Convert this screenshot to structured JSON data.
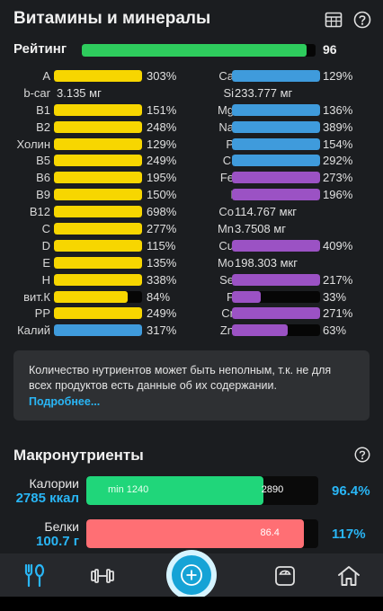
{
  "header": {
    "title": "Витамины и минералы",
    "icons": [
      "table-icon",
      "help-icon"
    ]
  },
  "rating": {
    "label": "Рейтинг",
    "value": "96",
    "fill_fraction": 0.96,
    "color": "#2ecc5d"
  },
  "colors": {
    "yellow": "#f7d600",
    "blue": "#3f9bdc",
    "purple": "#9b52c4",
    "green": "#20d67a",
    "red": "#ff6f74",
    "accent": "#29b6f6"
  },
  "nutrients_left": [
    {
      "name": "A",
      "pct": "303%",
      "fill": 1.0,
      "color": "#f7d600"
    },
    {
      "name": "b-car",
      "amount": "3.135 мг"
    },
    {
      "name": "B1",
      "pct": "151%",
      "fill": 1.0,
      "color": "#f7d600"
    },
    {
      "name": "B2",
      "pct": "248%",
      "fill": 1.0,
      "color": "#f7d600"
    },
    {
      "name": "Холин",
      "pct": "129%",
      "fill": 1.0,
      "color": "#f7d600"
    },
    {
      "name": "B5",
      "pct": "249%",
      "fill": 1.0,
      "color": "#f7d600"
    },
    {
      "name": "B6",
      "pct": "195%",
      "fill": 1.0,
      "color": "#f7d600"
    },
    {
      "name": "B9",
      "pct": "150%",
      "fill": 1.0,
      "color": "#f7d600"
    },
    {
      "name": "B12",
      "pct": "698%",
      "fill": 1.0,
      "color": "#f7d600"
    },
    {
      "name": "C",
      "pct": "277%",
      "fill": 1.0,
      "color": "#f7d600"
    },
    {
      "name": "D",
      "pct": "115%",
      "fill": 1.0,
      "color": "#f7d600"
    },
    {
      "name": "E",
      "pct": "135%",
      "fill": 1.0,
      "color": "#f7d600"
    },
    {
      "name": "H",
      "pct": "338%",
      "fill": 1.0,
      "color": "#f7d600"
    },
    {
      "name": "вит.К",
      "pct": "84%",
      "fill": 0.84,
      "color": "#f7d600"
    },
    {
      "name": "PP",
      "pct": "249%",
      "fill": 1.0,
      "color": "#f7d600"
    },
    {
      "name": "Калий",
      "pct": "317%",
      "fill": 1.0,
      "color": "#3f9bdc"
    }
  ],
  "nutrients_right": [
    {
      "name": "Ca",
      "pct": "129%",
      "fill": 1.0,
      "color": "#3f9bdc"
    },
    {
      "name": "Si",
      "amount": "233.777 мг"
    },
    {
      "name": "Mg",
      "pct": "136%",
      "fill": 1.0,
      "color": "#3f9bdc"
    },
    {
      "name": "Na",
      "pct": "389%",
      "fill": 1.0,
      "color": "#3f9bdc"
    },
    {
      "name": "P",
      "pct": "154%",
      "fill": 1.0,
      "color": "#3f9bdc"
    },
    {
      "name": "Cl",
      "pct": "292%",
      "fill": 1.0,
      "color": "#3f9bdc"
    },
    {
      "name": "Fe",
      "pct": "273%",
      "fill": 1.0,
      "color": "#9b52c4"
    },
    {
      "name": "I",
      "pct": "196%",
      "fill": 1.0,
      "color": "#9b52c4"
    },
    {
      "name": "Co",
      "amount": "114.767 мкг"
    },
    {
      "name": "Mn",
      "amount": "3.7508 мг"
    },
    {
      "name": "Cu",
      "pct": "409%",
      "fill": 1.0,
      "color": "#9b52c4"
    },
    {
      "name": "Mo",
      "amount": "198.303 мкг"
    },
    {
      "name": "Se",
      "pct": "217%",
      "fill": 1.0,
      "color": "#9b52c4"
    },
    {
      "name": "F",
      "pct": "33%",
      "fill": 0.33,
      "color": "#9b52c4"
    },
    {
      "name": "Cr",
      "pct": "271%",
      "fill": 1.0,
      "color": "#9b52c4"
    },
    {
      "name": "Zn",
      "pct": "63%",
      "fill": 0.63,
      "color": "#9b52c4"
    }
  ],
  "info": {
    "text": "Количество нутриентов может быть неполным, т.к. не для всех продуктов есть данные об их содержании.",
    "link": "Подробнее..."
  },
  "macros": {
    "title": "Макронутриенты",
    "rows": [
      {
        "name": "Калории",
        "amount": "2785 ккал",
        "min_label": "min 1240",
        "mark_label": "2890",
        "pct": "96.4%",
        "fill": 0.764,
        "mark_at": 0.755,
        "color": "#20d67a"
      },
      {
        "name": "Белки",
        "amount": "100.7 г",
        "min_label": "",
        "mark_label": "86.4",
        "pct": "117%",
        "fill": 0.938,
        "mark_at": 0.75,
        "color": "#ff6f74"
      }
    ]
  },
  "nav": {
    "items": [
      "utensils-icon",
      "dumbbell-icon",
      "add-icon",
      "scale-icon",
      "home-icon"
    ]
  }
}
